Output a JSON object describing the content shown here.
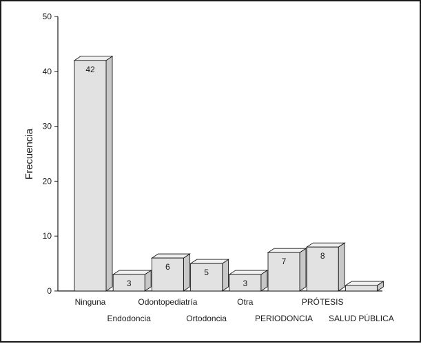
{
  "chart_data": {
    "type": "bar",
    "categories": [
      "Ninguna",
      "Endodoncia",
      "Odontopediatría",
      "Ortodoncia",
      "Otra",
      "PERIODONCIA",
      "PRÓTESIS",
      "SALUD PÚBLICA"
    ],
    "values": [
      42,
      3,
      6,
      5,
      3,
      7,
      8,
      1
    ],
    "data_labels": [
      "42",
      "3",
      "6",
      "5",
      "3",
      "7",
      "8",
      ""
    ],
    "title": "",
    "xlabel": "",
    "ylabel": "Frecuencia",
    "ylim": [
      0,
      50
    ],
    "yticks": [
      "0",
      "10",
      "20",
      "30",
      "40",
      "50"
    ],
    "style": "3d-bar",
    "bar_color": "#e2e2e2",
    "bar_side_color": "#c8c8c8",
    "bar_top_color": "#f0f0f0",
    "outline_color": "#1a1a1a",
    "grid": false,
    "legend": "none"
  }
}
